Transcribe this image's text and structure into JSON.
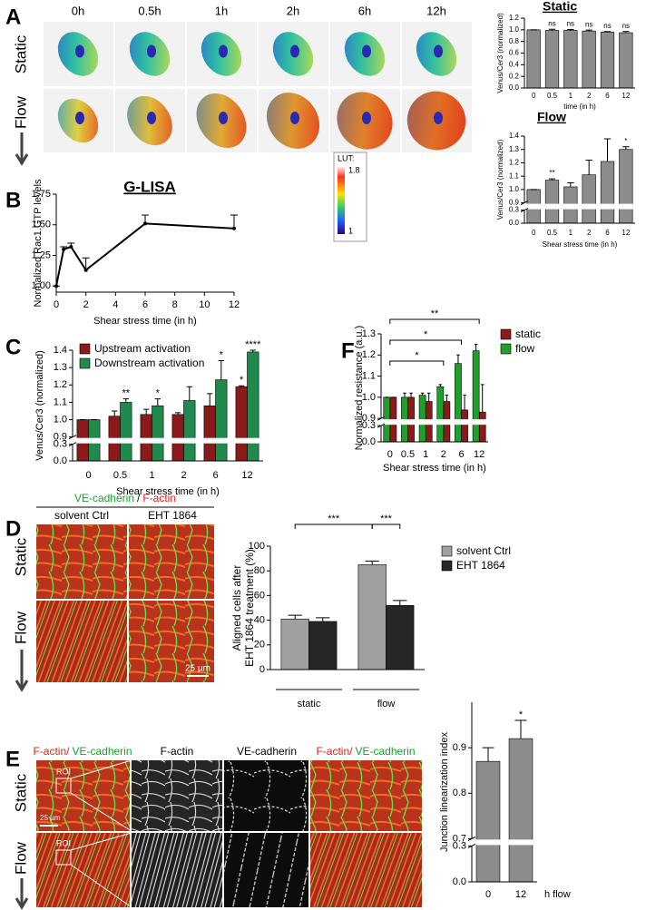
{
  "panel_labels": [
    "A",
    "B",
    "C",
    "D",
    "E",
    "F"
  ],
  "panel_A": {
    "columns": [
      "0h",
      "0.5h",
      "1h",
      "2h",
      "6h",
      "12h"
    ],
    "rows": [
      "Static",
      "Flow"
    ],
    "lut": {
      "title": "LUT:",
      "max": "1.8",
      "min": "1"
    }
  },
  "panel_D": {
    "header": {
      "green": "VE-cadherin",
      "sep": "/",
      "red": "F-actin"
    },
    "columns": [
      "solvent Ctrl",
      "EHT 1864"
    ],
    "rows": [
      "Static",
      "Flow"
    ],
    "scale_bar": "25 µm"
  },
  "panel_E": {
    "columns": [
      {
        "red": "F-actin/",
        "green": "VE-cadherin"
      },
      "F-actin",
      "VE-cadherin",
      {
        "red": "F-actin/",
        "green": "VE-cadherin"
      }
    ],
    "rows": [
      "Static",
      "Flow"
    ],
    "roi": [
      "ROI",
      "ROI"
    ],
    "scale_bar": "25 µm"
  },
  "chart_data": [
    {
      "type": "bar",
      "title": "Static",
      "categories": [
        "0",
        "0.5",
        "1",
        "2",
        "6",
        "12"
      ],
      "values": [
        1.0,
        0.99,
        0.99,
        0.98,
        0.96,
        0.95
      ],
      "errors": [
        0,
        0.02,
        0.015,
        0.015,
        0.01,
        0.02
      ],
      "annotations": [
        null,
        "ns",
        "ns",
        "ns",
        "ns",
        "ns"
      ],
      "color": "#8c8c8c",
      "ylim": [
        0,
        1.2
      ],
      "yticks": [
        {
          "value": 0,
          "label": "0.0"
        },
        0.2,
        0.4,
        0.6,
        0.8,
        {
          "value": 1,
          "label": "1.0"
        },
        1.2
      ],
      "xlabel": "time (in h)",
      "ylabel": "Venus/Cer3 (normalized)"
    },
    {
      "type": "bar",
      "title": "Flow",
      "categories": [
        "0",
        "0.5",
        "1",
        "2",
        "6",
        "12"
      ],
      "values": [
        1.0,
        1.07,
        1.02,
        1.11,
        1.21,
        1.3
      ],
      "errors": [
        0,
        0.01,
        0.03,
        0.11,
        0.17,
        0.02
      ],
      "annotations": [
        null,
        "**",
        null,
        null,
        null,
        "*"
      ],
      "color": "#8c8c8c",
      "ylim": [
        0,
        1.4
      ],
      "y_break": [
        0.3,
        0.9
      ],
      "yticks": [
        {
          "value": 0,
          "label": "0.0"
        },
        0.3,
        0.9,
        {
          "value": 1,
          "label": "1.0"
        },
        1.1,
        1.2,
        1.3,
        1.4
      ],
      "xlabel": "Shear stress time (in h)",
      "ylabel": "Venus/Cer3 (normalized)"
    },
    {
      "type": "line",
      "title": "G-LISA",
      "x": [
        0,
        0.5,
        1,
        2,
        6,
        12
      ],
      "values": [
        1.0,
        1.3,
        1.32,
        1.13,
        1.51,
        1.47
      ],
      "errors": [
        0,
        0.02,
        0.03,
        0.1,
        0.07,
        0.11
      ],
      "color": "#000000",
      "xlim": [
        0,
        12
      ],
      "xticks": [
        0,
        2,
        4,
        6,
        8,
        10,
        12
      ],
      "ylim": [
        0.95,
        1.75
      ],
      "yticks": [
        {
          "value": 1,
          "label": "1.00"
        },
        1.25,
        {
          "value": 1.5,
          "label": "1.50"
        },
        1.75
      ],
      "xlabel": "Shear stress time  (in h)",
      "ylabel": "Normalized Rac1.GTP levels"
    },
    {
      "type": "bar",
      "categories": [
        "0",
        "0.5",
        "1",
        "2",
        "6",
        "12"
      ],
      "series": [
        {
          "name": "Upstream activation",
          "color": "#8b1a1a",
          "values": [
            1.0,
            1.02,
            1.03,
            1.03,
            1.08,
            1.19
          ],
          "errors": [
            0,
            0.03,
            0.03,
            0.01,
            0.07,
            0.005
          ],
          "annotations": [
            null,
            null,
            null,
            null,
            null,
            "*"
          ]
        },
        {
          "name": "Downstream activation",
          "color": "#1f8a4c",
          "values": [
            1.0,
            1.1,
            1.08,
            1.11,
            1.23,
            1.39
          ],
          "errors": [
            0,
            0.02,
            0.04,
            0.08,
            0.11,
            0.01
          ],
          "annotations": [
            null,
            "**",
            "*",
            null,
            "*",
            "****"
          ]
        }
      ],
      "ylim": [
        0,
        1.4
      ],
      "y_break": [
        0.3,
        0.9
      ],
      "yticks": [
        {
          "value": 0,
          "label": "0.0"
        },
        0.3,
        0.9,
        {
          "value": 1,
          "label": "1.0"
        },
        1.1,
        1.2,
        1.3,
        1.4
      ],
      "legend": "top-left",
      "xlabel": "Shear stress time  (in h)",
      "ylabel": "Venus/Cer3 (normalized)"
    },
    {
      "type": "bar",
      "categories": [
        "0",
        "0.5",
        "1",
        "2",
        "6",
        "12"
      ],
      "series": [
        {
          "name": "static",
          "color": "#8b1a1a",
          "values": [
            1.0,
            1.0,
            0.98,
            0.98,
            0.94,
            0.93
          ],
          "errors": [
            0,
            0.02,
            0.04,
            0.03,
            0.07,
            0.13
          ]
        },
        {
          "name": "flow",
          "color": "#1fa02a",
          "values": [
            1.0,
            1.0,
            1.01,
            1.05,
            1.16,
            1.22
          ],
          "errors": [
            0,
            0.02,
            0.01,
            0.01,
            0.04,
            0.03
          ]
        }
      ],
      "brackets": [
        "*",
        "*",
        "**"
      ],
      "ylim": [
        0,
        1.3
      ],
      "y_break": [
        0.3,
        0.9
      ],
      "yticks": [
        {
          "value": 0,
          "label": "0.0"
        },
        0.3,
        0.9,
        {
          "value": 1,
          "label": "1.0"
        },
        1.1,
        1.2,
        1.3
      ],
      "legend": "right",
      "xlabel": "Shear stress time (in h)",
      "ylabel": "Normalized resistance (a.u.)"
    },
    {
      "type": "bar",
      "categories": [
        "static",
        "flow"
      ],
      "series": [
        {
          "name": "solvent Ctrl",
          "color": "#a0a0a0",
          "values": [
            41,
            85
          ],
          "errors": [
            3,
            3
          ]
        },
        {
          "name": "EHT 1864",
          "color": "#262626",
          "values": [
            39,
            52
          ],
          "errors": [
            3,
            4
          ]
        }
      ],
      "brackets": [
        "***",
        "***"
      ],
      "ylim": [
        0,
        100
      ],
      "yticks": [
        0,
        20,
        40,
        60,
        80,
        100
      ],
      "legend": "right",
      "ylabel": [
        "Aligned cells after",
        "EHT 1864 treatment (%)"
      ]
    },
    {
      "type": "bar",
      "categories": [
        "0",
        "12"
      ],
      "values": [
        0.87,
        0.92
      ],
      "errors": [
        0.03,
        0.04
      ],
      "annotations": [
        null,
        "*"
      ],
      "color": "#8c8c8c",
      "ylim": [
        0,
        1.0
      ],
      "y_break": [
        0.3,
        0.7
      ],
      "yticks": [
        {
          "value": 0,
          "label": "0.0"
        },
        0.3,
        0.7,
        0.8,
        0.9
      ],
      "xlabel": "h flow",
      "ylabel": "Junction linearization index"
    }
  ]
}
